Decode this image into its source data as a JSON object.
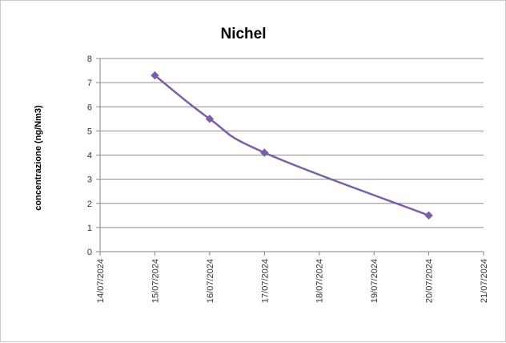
{
  "chart_data": {
    "type": "line",
    "title": "Nichel",
    "xlabel": "",
    "ylabel": "concentrazione (ng/Nm3)",
    "x_ticks": [
      "14/07/2024",
      "15/07/2024",
      "16/07/2024",
      "17/07/2024",
      "18/07/2024",
      "19/07/2024",
      "20/07/2024",
      "21/07/2024"
    ],
    "y_ticks": [
      0,
      1,
      2,
      3,
      4,
      5,
      6,
      7,
      8
    ],
    "xlim": [
      "14/07/2024",
      "21/07/2024"
    ],
    "ylim": [
      0,
      8
    ],
    "grid": true,
    "legend": "none",
    "series": [
      {
        "x": [
          "15/07/2024",
          "16/07/2024",
          "17/07/2024",
          "20/07/2024"
        ],
        "values": [
          7.3,
          5.5,
          4.1,
          1.5
        ],
        "color": "#7b5ea7",
        "marker": "diamond",
        "smooth": true
      }
    ]
  }
}
